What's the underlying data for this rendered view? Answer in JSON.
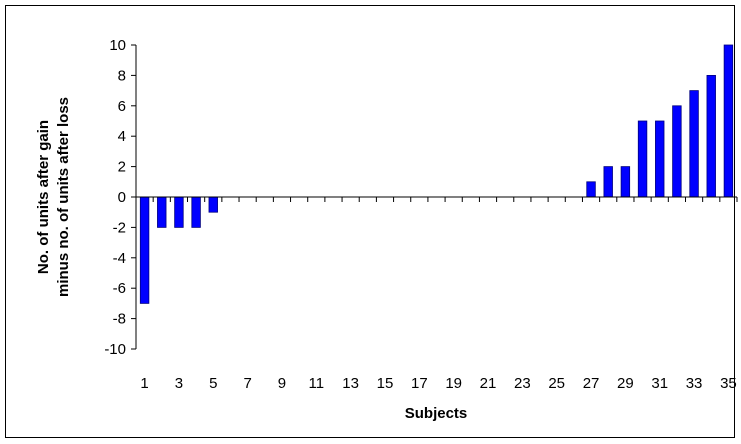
{
  "chart_data": {
    "type": "bar",
    "title": "",
    "xlabel": "Subjects",
    "ylabel_line1": "No. of units after gain",
    "ylabel_line2": "minus no. of units after loss",
    "ylim": [
      -10,
      10
    ],
    "ytick_step": 2,
    "yticks": [
      "10",
      "8",
      "6",
      "4",
      "2",
      "0",
      "-2",
      "-4",
      "-6",
      "-8",
      "-10"
    ],
    "xtick_labels": [
      "1",
      "3",
      "5",
      "7",
      "9",
      "11",
      "13",
      "15",
      "17",
      "19",
      "21",
      "23",
      "25",
      "27",
      "29",
      "31",
      "33",
      "35"
    ],
    "categories": [
      "1",
      "2",
      "3",
      "4",
      "5",
      "6",
      "7",
      "8",
      "9",
      "10",
      "11",
      "12",
      "13",
      "14",
      "15",
      "16",
      "17",
      "18",
      "19",
      "20",
      "21",
      "22",
      "23",
      "24",
      "25",
      "26",
      "27",
      "28",
      "29",
      "30",
      "31",
      "32",
      "33",
      "34",
      "35"
    ],
    "values": [
      -7,
      -2,
      -2,
      -2,
      -1,
      0,
      0,
      0,
      0,
      0,
      0,
      0,
      0,
      0,
      0,
      0,
      0,
      0,
      0,
      0,
      0,
      0,
      0,
      0,
      0,
      0,
      1,
      2,
      2,
      5,
      5,
      6,
      7,
      8,
      10
    ],
    "grid": false,
    "legend": "none",
    "bar_color": "#0000ff",
    "bar_edge_color": "#000080",
    "axis_color": "#000000"
  }
}
